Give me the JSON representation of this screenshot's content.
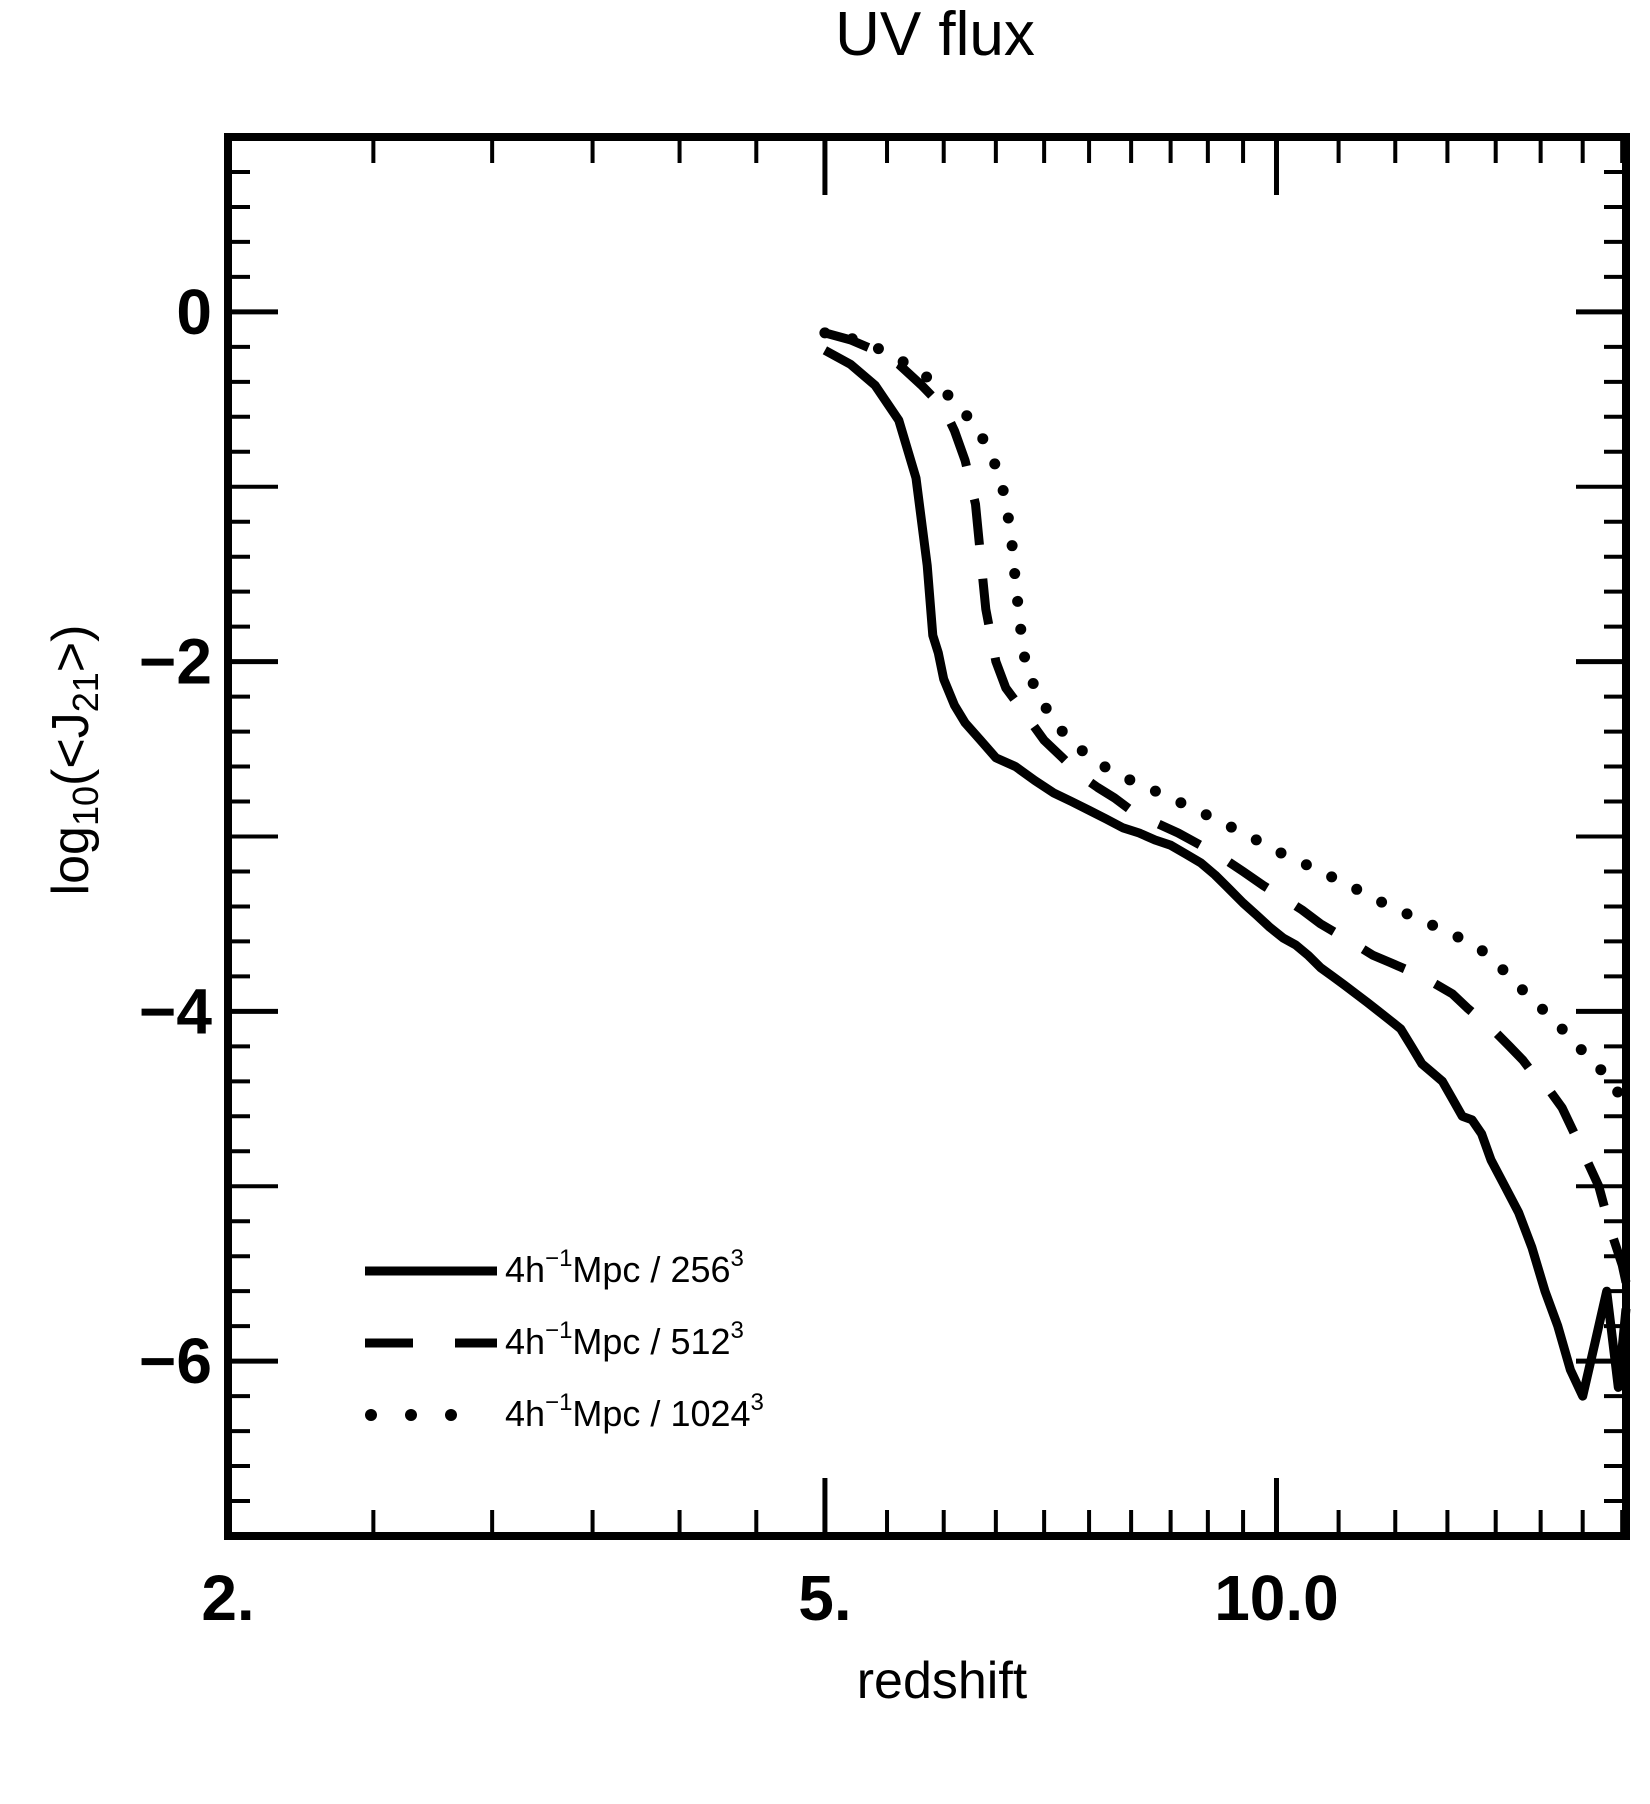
{
  "chart_data": {
    "type": "line",
    "title": "UV flux",
    "xlabel": "redshift",
    "ylabel": {
      "prefix": "log",
      "sub": "10",
      "mid": "(<J",
      "sub2": "21",
      "suffix": ">)"
    },
    "x_scale": "log",
    "xlim": [
      2.0,
      17.1
    ],
    "ylim": [
      -7.0,
      1.0
    ],
    "x_ticks": [
      {
        "value": 2.0,
        "label": "2."
      },
      {
        "value": 5.0,
        "label": "5."
      },
      {
        "value": 10.0,
        "label": "10.0"
      }
    ],
    "y_ticks": [
      {
        "value": 0,
        "label": "0"
      },
      {
        "value": -2,
        "label": "−2"
      },
      {
        "value": -4,
        "label": "−4"
      },
      {
        "value": -6,
        "label": "−6"
      }
    ],
    "legend_position": "bottom-left",
    "series": [
      {
        "name": "4h−1Mpc / 2563",
        "legend": {
          "a": "4h",
          "sup1": "−1",
          "b": "Mpc / 256",
          "sup2": "3"
        },
        "style": "solid",
        "x": [
          5.0,
          5.2,
          5.4,
          5.6,
          5.75,
          5.85,
          5.9,
          5.95,
          6.0,
          6.1,
          6.2,
          6.35,
          6.5,
          6.7,
          6.9,
          7.1,
          7.3,
          7.5,
          7.7,
          7.9,
          8.1,
          8.3,
          8.5,
          8.7,
          8.9,
          9.1,
          9.3,
          9.5,
          9.7,
          9.9,
          10.1,
          10.3,
          10.5,
          10.7,
          10.9,
          11.1,
          11.3,
          11.5,
          11.7,
          11.9,
          12.1,
          12.3,
          12.5,
          12.7,
          12.9,
          13.1,
          13.3,
          13.5,
          13.7,
          13.9,
          14.2,
          14.5,
          14.8,
          15.1,
          15.4,
          15.7,
          16.0,
          16.3,
          16.6,
          16.9,
          17.1
        ],
        "y": [
          -0.22,
          -0.3,
          -0.42,
          -0.62,
          -0.95,
          -1.45,
          -1.85,
          -1.95,
          -2.1,
          -2.25,
          -2.35,
          -2.45,
          -2.55,
          -2.6,
          -2.68,
          -2.75,
          -2.8,
          -2.85,
          -2.9,
          -2.95,
          -2.98,
          -3.02,
          -3.05,
          -3.1,
          -3.15,
          -3.22,
          -3.3,
          -3.38,
          -3.45,
          -3.52,
          -3.58,
          -3.62,
          -3.68,
          -3.75,
          -3.8,
          -3.85,
          -3.9,
          -3.95,
          -4.0,
          -4.05,
          -4.1,
          -4.2,
          -4.3,
          -4.35,
          -4.4,
          -4.5,
          -4.6,
          -4.62,
          -4.7,
          -4.85,
          -5.0,
          -5.15,
          -5.35,
          -5.6,
          -5.8,
          -6.05,
          -6.2,
          -5.9,
          -5.6,
          -6.15,
          -5.7
        ]
      },
      {
        "name": "4h−1Mpc / 5123",
        "legend": {
          "a": "4h",
          "sup1": "−1",
          "b": "Mpc / 512",
          "sup2": "3"
        },
        "style": "dashed",
        "x": [
          5.0,
          5.2,
          5.4,
          5.6,
          5.8,
          6.0,
          6.1,
          6.2,
          6.3,
          6.35,
          6.4,
          6.45,
          6.5,
          6.6,
          6.8,
          7.0,
          7.2,
          7.4,
          7.6,
          7.8,
          8.0,
          8.3,
          8.6,
          8.9,
          9.2,
          9.5,
          9.8,
          10.1,
          10.4,
          10.7,
          11.0,
          11.3,
          11.6,
          11.9,
          12.2,
          12.5,
          12.8,
          13.1,
          13.4,
          13.7,
          14.0,
          14.3,
          14.6,
          14.9,
          15.2,
          15.5,
          15.8,
          16.1,
          16.4,
          16.7,
          17.0,
          17.1
        ],
        "y": [
          -0.12,
          -0.16,
          -0.22,
          -0.3,
          -0.42,
          -0.55,
          -0.68,
          -0.85,
          -1.1,
          -1.4,
          -1.7,
          -1.85,
          -2.0,
          -2.15,
          -2.3,
          -2.45,
          -2.55,
          -2.65,
          -2.72,
          -2.78,
          -2.85,
          -2.92,
          -2.98,
          -3.05,
          -3.12,
          -3.2,
          -3.28,
          -3.35,
          -3.42,
          -3.5,
          -3.56,
          -3.62,
          -3.68,
          -3.72,
          -3.76,
          -3.8,
          -3.85,
          -3.9,
          -3.98,
          -4.05,
          -4.12,
          -4.2,
          -4.28,
          -4.38,
          -4.45,
          -4.55,
          -4.7,
          -4.85,
          -5.0,
          -5.25,
          -5.45,
          -5.55
        ]
      },
      {
        "name": "4h−1Mpc / 10243",
        "legend": {
          "a": "4h",
          "sup1": "−1",
          "b": "Mpc / 1024",
          "sup2": "3"
        },
        "style": "dotted",
        "x": [
          5.0,
          5.2,
          5.4,
          5.6,
          5.8,
          6.0,
          6.2,
          6.4,
          6.55,
          6.65,
          6.7,
          6.75,
          6.8,
          6.9,
          7.0,
          7.2,
          7.4,
          7.6,
          7.8,
          8.0,
          8.3,
          8.6,
          8.9,
          9.2,
          9.5,
          9.8,
          10.1,
          10.4,
          10.7,
          11.0,
          11.3,
          11.6,
          11.9,
          12.2,
          12.5,
          12.8,
          13.1,
          13.4,
          13.7,
          14.0,
          14.3,
          14.6,
          14.9,
          15.2,
          15.5,
          15.8,
          16.1,
          16.4,
          16.7,
          17.0
        ],
        "y": [
          -0.12,
          -0.15,
          -0.2,
          -0.27,
          -0.35,
          -0.45,
          -0.58,
          -0.75,
          -0.95,
          -1.25,
          -1.55,
          -1.8,
          -2.0,
          -2.15,
          -2.25,
          -2.4,
          -2.5,
          -2.58,
          -2.63,
          -2.68,
          -2.74,
          -2.8,
          -2.86,
          -2.92,
          -2.98,
          -3.04,
          -3.1,
          -3.15,
          -3.2,
          -3.25,
          -3.3,
          -3.35,
          -3.4,
          -3.44,
          -3.48,
          -3.52,
          -3.56,
          -3.6,
          -3.65,
          -3.72,
          -3.8,
          -3.88,
          -3.95,
          -4.03,
          -4.1,
          -4.18,
          -4.25,
          -4.32,
          -4.4,
          -4.5
        ]
      }
    ]
  }
}
